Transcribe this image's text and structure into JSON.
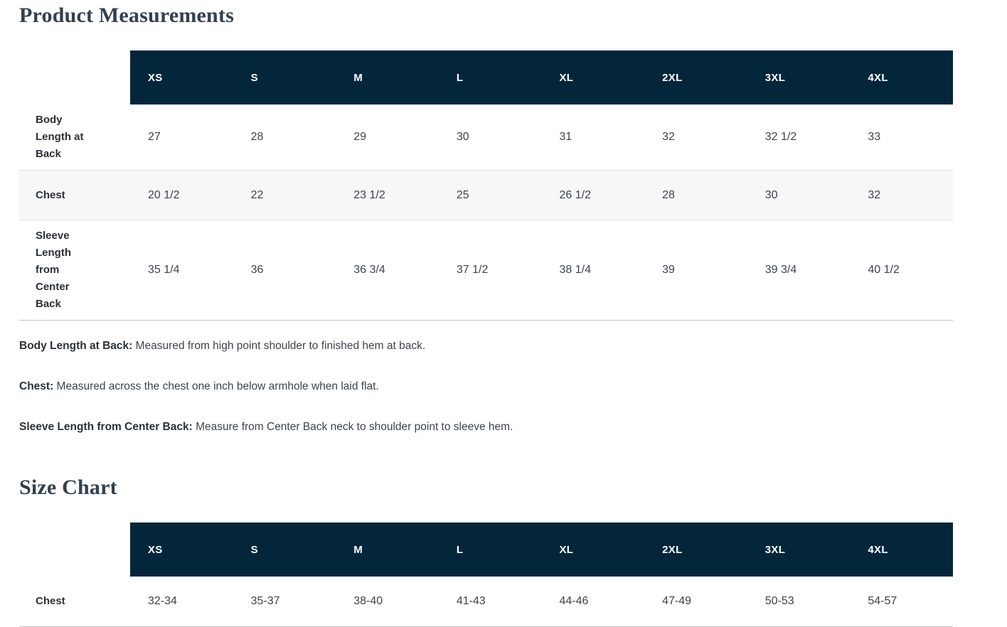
{
  "colors": {
    "header_bg": "#03263b",
    "header_text": "#ffffff",
    "stripe_bg": "#f7f7f7",
    "border": "#e3e3e3",
    "table_bottom_border": "#c6c6c6",
    "heading_text": "#32404e",
    "body_text": "#3c434b",
    "label_text": "#2b3138"
  },
  "product_measurements": {
    "title": "Product Measurements",
    "table": {
      "columns": [
        "XS",
        "S",
        "M",
        "L",
        "XL",
        "2XL",
        "3XL",
        "4XL"
      ],
      "rows": [
        {
          "label": "Body Length at Back",
          "values": [
            "27",
            "28",
            "29",
            "30",
            "31",
            "32",
            "32 1/2",
            "33"
          ],
          "striped": false
        },
        {
          "label": "Chest",
          "values": [
            "20 1/2",
            "22",
            "23 1/2",
            "25",
            "26 1/2",
            "28",
            "30",
            "32"
          ],
          "striped": true
        },
        {
          "label": "Sleeve Length from Center Back",
          "values": [
            "35 1/4",
            "36",
            "36 3/4",
            "37 1/2",
            "38 1/4",
            "39",
            "39 3/4",
            "40 1/2"
          ],
          "striped": false
        }
      ]
    },
    "notes": [
      {
        "term": "Body Length at Back:",
        "description": "Measured from high point shoulder to finished hem at back."
      },
      {
        "term": "Chest:",
        "description": "Measured across the chest one inch below armhole when laid flat."
      },
      {
        "term": "Sleeve Length from Center Back:",
        "description": "Measure from Center Back neck to shoulder point to sleeve hem."
      }
    ]
  },
  "size_chart": {
    "title": "Size Chart",
    "table": {
      "columns": [
        "XS",
        "S",
        "M",
        "L",
        "XL",
        "2XL",
        "3XL",
        "4XL"
      ],
      "rows": [
        {
          "label": "Chest",
          "values": [
            "32-34",
            "35-37",
            "38-40",
            "41-43",
            "44-46",
            "47-49",
            "50-53",
            "54-57"
          ],
          "striped": false
        }
      ]
    }
  }
}
